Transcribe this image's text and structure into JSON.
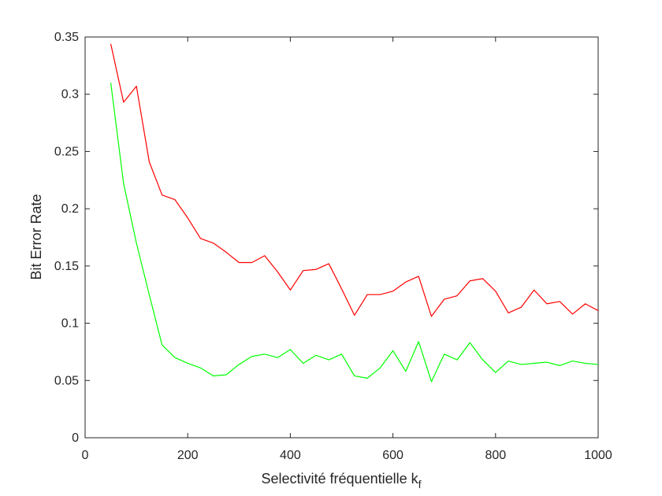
{
  "chart_data": {
    "type": "line",
    "title": "",
    "xlabel": "Selectivité fréquentielle k",
    "xlabel_subscript": "f",
    "ylabel": "Bit Error Rate",
    "xlim": [
      0,
      1000
    ],
    "ylim": [
      0,
      0.35
    ],
    "xticks": [
      0,
      200,
      400,
      600,
      800,
      1000
    ],
    "xtick_labels": [
      "0",
      "200",
      "400",
      "600",
      "800",
      "1000"
    ],
    "yticks": [
      0,
      0.05,
      0.1,
      0.15,
      0.2,
      0.25,
      0.3,
      0.35
    ],
    "ytick_labels": [
      "0",
      "0.05",
      "0.1",
      "0.15",
      "0.2",
      "0.25",
      "0.3",
      "0.35"
    ],
    "grid": false,
    "legend": "none",
    "x": [
      50,
      75,
      100,
      125,
      150,
      175,
      200,
      225,
      250,
      275,
      300,
      325,
      350,
      375,
      400,
      425,
      450,
      475,
      500,
      525,
      550,
      575,
      600,
      625,
      650,
      675,
      700,
      725,
      750,
      775,
      800,
      825,
      850,
      875,
      900,
      925,
      950,
      975,
      1000
    ],
    "series": [
      {
        "color": "#ff0000",
        "values": [
          0.344,
          0.293,
          0.307,
          0.241,
          0.212,
          0.208,
          0.192,
          0.174,
          0.17,
          0.162,
          0.153,
          0.153,
          0.159,
          0.145,
          0.129,
          0.146,
          0.147,
          0.152,
          0.13,
          0.107,
          0.125,
          0.125,
          0.128,
          0.136,
          0.141,
          0.106,
          0.121,
          0.124,
          0.137,
          0.139,
          0.128,
          0.109,
          0.114,
          0.129,
          0.117,
          0.119,
          0.108,
          0.117,
          0.111
        ]
      },
      {
        "color": "#00ff00",
        "values": [
          0.31,
          0.222,
          0.17,
          0.125,
          0.081,
          0.07,
          0.065,
          0.061,
          0.054,
          0.055,
          0.064,
          0.071,
          0.073,
          0.07,
          0.077,
          0.065,
          0.072,
          0.068,
          0.073,
          0.054,
          0.052,
          0.061,
          0.076,
          0.058,
          0.084,
          0.049,
          0.073,
          0.068,
          0.083,
          0.068,
          0.057,
          0.067,
          0.064,
          0.065,
          0.066,
          0.063,
          0.067,
          0.065,
          0.064
        ]
      }
    ]
  }
}
